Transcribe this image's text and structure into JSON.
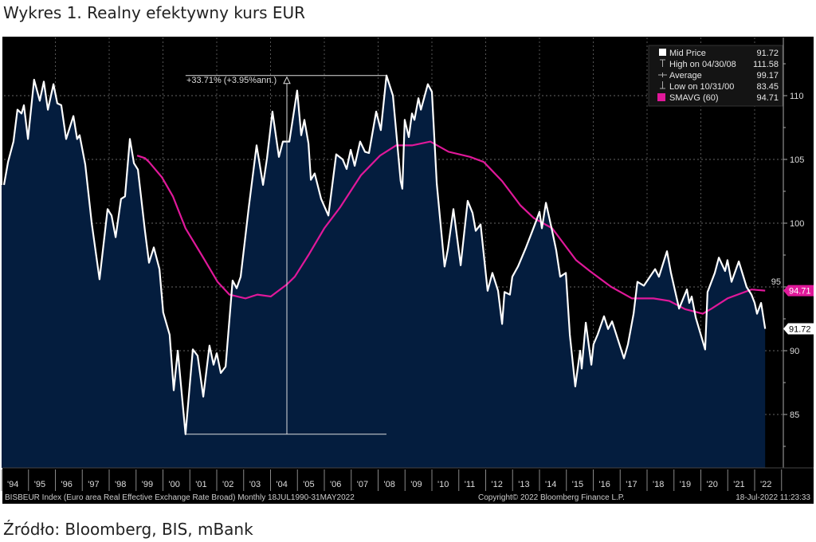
{
  "title": "Wykres 1. Realny efektywny kurs EUR",
  "source": "Źródło: Bloomberg, BIS, mBank",
  "colors": {
    "background": "#000000",
    "area": "#041d3e",
    "price": "#ffffff",
    "sma": "#e0189a"
  },
  "footer": {
    "index": "BISBEUR Index (Euro area Real Effective Exchange Rate Broad)  Monthly 18JUL1990-31MAY2022",
    "copyright": "Copyright© 2022 Bloomberg Finance L.P.",
    "timestamp": "18-Jul-2022 11:23:33"
  },
  "legend": [
    {
      "label": "Mid Price",
      "value": "91.72",
      "icon": "white-square"
    },
    {
      "label": "High on 04/30/08",
      "value": "111.58",
      "icon": "high-marker"
    },
    {
      "label": "Average",
      "value": "99.17",
      "icon": "average-marker"
    },
    {
      "label": "Low on 10/31/00",
      "value": "83.45",
      "icon": "low-marker"
    },
    {
      "label": "SMAVG (60)",
      "value": "94.71",
      "icon": "magenta-square"
    }
  ],
  "annotation": {
    "text": "+33.71% (+3.95%ann.)",
    "from": 83.45,
    "to": 111.58
  },
  "last_labels": {
    "sma": "94.71",
    "price": "91.72"
  },
  "chart_data": {
    "type": "area",
    "title": "Wykres 1. Realny efektywny kurs EUR",
    "xlabel": "",
    "ylabel": "",
    "xlim": [
      1994.0,
      2022.9
    ],
    "ylim": [
      80.8,
      114.2
    ],
    "y_ticks": [
      85,
      90,
      95,
      100,
      105,
      110
    ],
    "y_tick_labels": [
      "85",
      "90",
      "95",
      "100",
      "105",
      "110"
    ],
    "x_tick_labels": [
      "'94",
      "'95",
      "'96",
      "'97",
      "'98",
      "'99",
      "'00",
      "'01",
      "'02",
      "'03",
      "'04",
      "'05",
      "'06",
      "'07",
      "'08",
      "'09",
      "'10",
      "'11",
      "'12",
      "'13",
      "'14",
      "'15",
      "'16",
      "'17",
      "'18",
      "'19",
      "'20",
      "'21",
      "'22"
    ],
    "grid": true,
    "legend_position": "top-right",
    "series": [
      {
        "name": "Mid Price",
        "points": [
          [
            1994.09,
            103.0
          ],
          [
            1994.24,
            104.8
          ],
          [
            1994.44,
            106.4
          ],
          [
            1994.59,
            108.9
          ],
          [
            1994.74,
            108.6
          ],
          [
            1994.83,
            109.25
          ],
          [
            1994.98,
            106.6
          ],
          [
            1995.21,
            111.25
          ],
          [
            1995.42,
            109.6
          ],
          [
            1995.57,
            111.1
          ],
          [
            1995.72,
            108.9
          ],
          [
            1995.93,
            110.9
          ],
          [
            1996.07,
            109.4
          ],
          [
            1996.22,
            109.25
          ],
          [
            1996.4,
            106.6
          ],
          [
            1996.67,
            108.4
          ],
          [
            1996.81,
            106.6
          ],
          [
            1996.9,
            106.9
          ],
          [
            1997.11,
            104.6
          ],
          [
            1997.35,
            100.0
          ],
          [
            1997.64,
            95.6
          ],
          [
            1997.94,
            101.1
          ],
          [
            1998.09,
            100.6
          ],
          [
            1998.24,
            98.9
          ],
          [
            1998.44,
            101.9
          ],
          [
            1998.59,
            102.1
          ],
          [
            1998.77,
            106.6
          ],
          [
            1998.92,
            104.7
          ],
          [
            1999.07,
            104.2
          ],
          [
            1999.33,
            99.4
          ],
          [
            1999.48,
            96.9
          ],
          [
            1999.66,
            98.1
          ],
          [
            1999.87,
            96.4
          ],
          [
            2000.01,
            93.0
          ],
          [
            2000.25,
            91.25
          ],
          [
            2000.4,
            86.9
          ],
          [
            2000.55,
            90.0
          ],
          [
            2000.84,
            83.45
          ],
          [
            2001.11,
            90.1
          ],
          [
            2001.29,
            89.6
          ],
          [
            2001.5,
            86.4
          ],
          [
            2001.73,
            90.4
          ],
          [
            2001.88,
            88.9
          ],
          [
            2002.0,
            89.8
          ],
          [
            2002.15,
            88.25
          ],
          [
            2002.33,
            88.75
          ],
          [
            2002.59,
            95.5
          ],
          [
            2002.74,
            94.9
          ],
          [
            2002.89,
            95.8
          ],
          [
            2003.19,
            101.25
          ],
          [
            2003.48,
            106.1
          ],
          [
            2003.72,
            103.0
          ],
          [
            2003.87,
            105.1
          ],
          [
            2004.07,
            108.75
          ],
          [
            2004.31,
            105.2
          ],
          [
            2004.46,
            106.4
          ],
          [
            2004.7,
            106.4
          ],
          [
            2004.99,
            110.4
          ],
          [
            2005.14,
            106.9
          ],
          [
            2005.26,
            108.1
          ],
          [
            2005.41,
            106.25
          ],
          [
            2005.5,
            103.4
          ],
          [
            2005.64,
            103.9
          ],
          [
            2005.88,
            101.9
          ],
          [
            2006.15,
            100.6
          ],
          [
            2006.44,
            105.4
          ],
          [
            2006.68,
            105.0
          ],
          [
            2006.83,
            104.25
          ],
          [
            2006.98,
            105.75
          ],
          [
            2007.13,
            104.5
          ],
          [
            2007.33,
            106.4
          ],
          [
            2007.51,
            105.6
          ],
          [
            2007.66,
            105.5
          ],
          [
            2007.93,
            108.75
          ],
          [
            2008.1,
            107.3
          ],
          [
            2008.31,
            111.58
          ],
          [
            2008.55,
            110.0
          ],
          [
            2008.84,
            103.3
          ],
          [
            2008.9,
            102.7
          ],
          [
            2008.99,
            108.1
          ],
          [
            2009.14,
            106.75
          ],
          [
            2009.26,
            108.6
          ],
          [
            2009.35,
            108.1
          ],
          [
            2009.5,
            109.8
          ],
          [
            2009.59,
            108.9
          ],
          [
            2009.85,
            110.9
          ],
          [
            2010.0,
            110.3
          ],
          [
            2010.18,
            103.1
          ],
          [
            2010.47,
            96.6
          ],
          [
            2010.59,
            97.9
          ],
          [
            2010.8,
            101.1
          ],
          [
            2011.07,
            96.7
          ],
          [
            2011.33,
            101.75
          ],
          [
            2011.51,
            100.8
          ],
          [
            2011.63,
            99.4
          ],
          [
            2011.81,
            99.9
          ],
          [
            2012.07,
            94.7
          ],
          [
            2012.25,
            96.1
          ],
          [
            2012.46,
            94.7
          ],
          [
            2012.61,
            92.1
          ],
          [
            2012.7,
            94.6
          ],
          [
            2012.9,
            94.4
          ],
          [
            2012.99,
            95.8
          ],
          [
            2013.2,
            96.6
          ],
          [
            2013.5,
            98.1
          ],
          [
            2013.7,
            99.2
          ],
          [
            2013.88,
            100.2
          ],
          [
            2014.0,
            100.9
          ],
          [
            2014.09,
            99.6
          ],
          [
            2014.24,
            101.6
          ],
          [
            2014.47,
            99.4
          ],
          [
            2014.62,
            97.9
          ],
          [
            2014.77,
            95.8
          ],
          [
            2014.98,
            96.1
          ],
          [
            2015.13,
            91.25
          ],
          [
            2015.33,
            87.2
          ],
          [
            2015.51,
            90.0
          ],
          [
            2015.57,
            88.6
          ],
          [
            2015.72,
            92.2
          ],
          [
            2015.93,
            88.9
          ],
          [
            2016.01,
            90.5
          ],
          [
            2016.16,
            91.25
          ],
          [
            2016.4,
            92.7
          ],
          [
            2016.55,
            91.7
          ],
          [
            2016.7,
            92.3
          ],
          [
            2017.14,
            89.4
          ],
          [
            2017.29,
            90.5
          ],
          [
            2017.5,
            92.9
          ],
          [
            2017.64,
            95.4
          ],
          [
            2017.88,
            95.1
          ],
          [
            2018.3,
            96.4
          ],
          [
            2018.44,
            95.8
          ],
          [
            2018.74,
            97.8
          ],
          [
            2018.89,
            96.1
          ],
          [
            2019.19,
            93.3
          ],
          [
            2019.48,
            94.8
          ],
          [
            2019.57,
            93.75
          ],
          [
            2019.66,
            94.25
          ],
          [
            2019.81,
            92.6
          ],
          [
            2020.16,
            90.1
          ],
          [
            2020.25,
            94.6
          ],
          [
            2020.52,
            96.1
          ],
          [
            2020.67,
            97.3
          ],
          [
            2020.9,
            96.25
          ],
          [
            2020.99,
            97.1
          ],
          [
            2021.14,
            95.4
          ],
          [
            2021.41,
            97.0
          ],
          [
            2021.7,
            95.0
          ],
          [
            2021.88,
            94.4
          ],
          [
            2022.0,
            93.75
          ],
          [
            2022.09,
            92.9
          ],
          [
            2022.24,
            93.75
          ],
          [
            2022.39,
            91.72
          ]
        ]
      },
      {
        "name": "SMAVG (60)",
        "points": [
          [
            1999.04,
            105.3
          ],
          [
            1999.33,
            105.1
          ],
          [
            1999.48,
            104.8
          ],
          [
            1999.96,
            103.6
          ],
          [
            2000.37,
            102.1
          ],
          [
            2000.84,
            99.6
          ],
          [
            2001.44,
            97.5
          ],
          [
            2002.03,
            95.4
          ],
          [
            2002.47,
            94.4
          ],
          [
            2003.07,
            94.1
          ],
          [
            2003.51,
            94.4
          ],
          [
            2004.01,
            94.25
          ],
          [
            2004.61,
            95.2
          ],
          [
            2004.9,
            95.8
          ],
          [
            2005.41,
            97.5
          ],
          [
            2006.0,
            99.6
          ],
          [
            2006.59,
            101.25
          ],
          [
            2007.36,
            103.75
          ],
          [
            2008.07,
            105.3
          ],
          [
            2008.67,
            106.1
          ],
          [
            2009.26,
            106.1
          ],
          [
            2009.94,
            106.4
          ],
          [
            2010.62,
            105.6
          ],
          [
            2011.42,
            105.2
          ],
          [
            2011.93,
            104.8
          ],
          [
            2012.61,
            103.3
          ],
          [
            2013.29,
            101.4
          ],
          [
            2013.79,
            100.4
          ],
          [
            2014.47,
            99.6
          ],
          [
            2015.36,
            97.1
          ],
          [
            2015.87,
            96.25
          ],
          [
            2016.67,
            95.0
          ],
          [
            2017.44,
            94.1
          ],
          [
            2018.24,
            94.1
          ],
          [
            2018.83,
            93.9
          ],
          [
            2019.42,
            93.25
          ],
          [
            2020.07,
            92.9
          ],
          [
            2020.4,
            93.3
          ],
          [
            2020.99,
            94.1
          ],
          [
            2021.88,
            94.8
          ],
          [
            2022.39,
            94.71
          ]
        ]
      }
    ]
  }
}
